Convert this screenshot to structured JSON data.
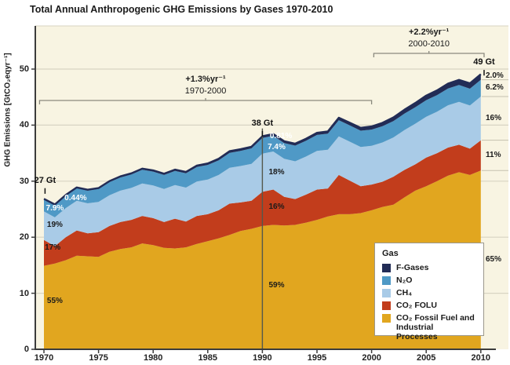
{
  "title": "Total Annual Anthropogenic GHG Emissions by Gases 1970-2010",
  "y_axis": {
    "title": "GHG Emissions [GtCO₂eqyr⁻¹]",
    "ticks": [
      0,
      10,
      20,
      30,
      40,
      50
    ]
  },
  "x_axis": {
    "ticks": [
      1970,
      1975,
      1980,
      1985,
      1990,
      1995,
      2000,
      2005,
      2010
    ]
  },
  "growth_annotations": [
    {
      "rate": "+1.3%yr⁻¹",
      "period": "1970-2000",
      "from_year": 1969.6,
      "to_year": 2000.0
    },
    {
      "rate": "+2.2%yr⁻¹",
      "period": "2000-2010",
      "from_year": 2000.2,
      "to_year": 2010.3
    }
  ],
  "total_labels": [
    {
      "text": "27 Gt",
      "year": 1970.1,
      "gt": 30.1
    },
    {
      "text": "38 Gt",
      "year": 1990.0,
      "gt": 40.3
    },
    {
      "text": "49 Gt",
      "year": 2010.3,
      "gt": 51.2
    }
  ],
  "share_labels": [
    {
      "text": "0.44%",
      "year": 1972.9,
      "gt": 26.9,
      "color": "#ffffff"
    },
    {
      "text": "7.9%",
      "year": 1971.0,
      "gt": 25.1,
      "color": "#ffffff"
    },
    {
      "text": "19%",
      "year": 1971.0,
      "gt": 22.1,
      "color": "#1a1a1a"
    },
    {
      "text": "17%",
      "year": 1970.8,
      "gt": 18.1,
      "color": "#1a1a1a"
    },
    {
      "text": "55%",
      "year": 1971.0,
      "gt": 8.6,
      "color": "#1a1a1a"
    },
    {
      "text": "0.81%",
      "year": 1991.7,
      "gt": 37.9,
      "color": "#ffffff"
    },
    {
      "text": "7.4%",
      "year": 1991.3,
      "gt": 36.0,
      "color": "#ffffff"
    },
    {
      "text": "18%",
      "year": 1991.3,
      "gt": 31.5,
      "color": "#1a1a1a"
    },
    {
      "text": "16%",
      "year": 1991.3,
      "gt": 25.4,
      "color": "#1a1a1a"
    },
    {
      "text": "59%",
      "year": 1991.3,
      "gt": 11.3,
      "color": "#1a1a1a"
    },
    {
      "text": "2.0%",
      "year": 2010.5,
      "gt": 48.7,
      "color": "#1a1a1a",
      "align": "left"
    },
    {
      "text": "6.2%",
      "year": 2010.5,
      "gt": 46.6,
      "color": "#1a1a1a",
      "align": "left"
    },
    {
      "text": "16%",
      "year": 2010.5,
      "gt": 41.2,
      "color": "#1a1a1a",
      "align": "left"
    },
    {
      "text": "11%",
      "year": 2010.5,
      "gt": 34.6,
      "color": "#1a1a1a",
      "align": "left"
    },
    {
      "text": "65%",
      "year": 2010.5,
      "gt": 16.0,
      "color": "#1a1a1a",
      "align": "left"
    }
  ],
  "legend": {
    "title": "Gas",
    "items": [
      {
        "label": "F-Gases",
        "color": "#222c56"
      },
      {
        "label": "N₂O",
        "color": "#4f99c6"
      },
      {
        "label": "CH₄",
        "color": "#a9cbe7"
      },
      {
        "label": "CO₂ FOLU",
        "color": "#c23d1c"
      },
      {
        "label": "CO₂ Fossil Fuel and Industrial Processes",
        "color": "#e1a61f"
      }
    ]
  },
  "colors": {
    "panel_bg": "#f8f4e2",
    "gridline": "#d8d4c3",
    "axis": "#3c3c3c",
    "marker_line_1990": "#54584c",
    "bracket": "#8a897e",
    "right_divider": "#c5c1b0",
    "fgases": "#222c56",
    "n2o": "#4f99c6",
    "ch4": "#a9cbe7",
    "co2_folu": "#c23d1c",
    "co2_fossil": "#e1a61f"
  },
  "chart_data": {
    "type": "area",
    "stacked": true,
    "title": "Total Annual Anthropogenic GHG Emissions by Gases 1970-2010",
    "ylabel": "GHG Emissions [GtCO₂eqyr⁻¹]",
    "unit": "GtCO₂eq/yr",
    "xlim": [
      1970,
      2010
    ],
    "ylim": [
      0,
      50
    ],
    "grid": true,
    "legend_position": "lower right",
    "x": [
      1970,
      1971,
      1972,
      1973,
      1974,
      1975,
      1976,
      1977,
      1978,
      1979,
      1980,
      1981,
      1982,
      1983,
      1984,
      1985,
      1986,
      1987,
      1988,
      1989,
      1990,
      1991,
      1992,
      1993,
      1994,
      1995,
      1996,
      1997,
      1998,
      1999,
      2000,
      2001,
      2002,
      2003,
      2004,
      2005,
      2006,
      2007,
      2008,
      2009,
      2010
    ],
    "series": [
      {
        "name": "CO₂ Fossil Fuel and Industrial Processes",
        "color": "#e1a61f",
        "values": [
          14.9,
          15.3,
          15.9,
          16.7,
          16.6,
          16.5,
          17.4,
          17.9,
          18.2,
          18.9,
          18.6,
          18.1,
          18.0,
          18.2,
          18.8,
          19.3,
          19.8,
          20.4,
          21.1,
          21.5,
          22.0,
          22.2,
          22.1,
          22.2,
          22.6,
          23.1,
          23.7,
          24.1,
          24.1,
          24.3,
          24.8,
          25.4,
          25.8,
          27.1,
          28.3,
          29.1,
          30.0,
          31.0,
          31.6,
          31.1,
          31.9
        ]
      },
      {
        "name": "CO₂ FOLU",
        "color": "#c23d1c",
        "values": [
          4.6,
          3.1,
          4.1,
          4.5,
          4.1,
          4.4,
          4.6,
          4.8,
          4.9,
          4.9,
          4.8,
          4.6,
          5.3,
          4.6,
          5.0,
          4.8,
          5.0,
          5.6,
          5.1,
          5.0,
          6.1,
          6.3,
          5.1,
          4.6,
          5.0,
          5.4,
          5.0,
          7.0,
          6.0,
          4.8,
          4.6,
          4.5,
          5.0,
          4.9,
          4.7,
          5.1,
          5.0,
          5.0,
          4.9,
          4.7,
          5.4
        ]
      },
      {
        "name": "CH₄",
        "color": "#a9cbe7",
        "values": [
          5.1,
          5.15,
          5.2,
          5.3,
          5.35,
          5.4,
          5.5,
          5.6,
          5.7,
          5.8,
          5.85,
          5.9,
          6.0,
          6.05,
          6.15,
          6.2,
          6.3,
          6.4,
          6.5,
          6.6,
          6.8,
          6.8,
          6.8,
          6.75,
          6.8,
          6.9,
          6.9,
          6.9,
          6.95,
          7.0,
          6.9,
          7.0,
          7.0,
          7.1,
          7.25,
          7.3,
          7.4,
          7.55,
          7.65,
          7.7,
          7.8
        ]
      },
      {
        "name": "N₂O",
        "color": "#4f99c6",
        "values": [
          2.13,
          2.16,
          2.2,
          2.23,
          2.26,
          2.3,
          2.33,
          2.36,
          2.4,
          2.43,
          2.46,
          2.5,
          2.52,
          2.55,
          2.58,
          2.6,
          2.63,
          2.66,
          2.7,
          2.75,
          2.8,
          2.8,
          2.8,
          2.8,
          2.82,
          2.85,
          2.87,
          2.88,
          2.9,
          2.9,
          2.9,
          2.9,
          2.92,
          2.94,
          2.95,
          2.96,
          2.97,
          2.98,
          3.0,
          3.0,
          3.0
        ]
      },
      {
        "name": "F-Gases",
        "color": "#222c56",
        "values": [
          0.12,
          0.13,
          0.14,
          0.15,
          0.16,
          0.17,
          0.18,
          0.19,
          0.2,
          0.21,
          0.22,
          0.23,
          0.24,
          0.25,
          0.26,
          0.27,
          0.28,
          0.29,
          0.3,
          0.3,
          0.31,
          0.32,
          0.33,
          0.34,
          0.36,
          0.38,
          0.41,
          0.44,
          0.48,
          0.52,
          0.56,
          0.6,
          0.65,
          0.7,
          0.75,
          0.8,
          0.84,
          0.88,
          0.92,
          0.95,
          0.98
        ]
      }
    ],
    "totals_called_out": [
      {
        "year": 1970,
        "total": 27
      },
      {
        "year": 1990,
        "total": 38
      },
      {
        "year": 2010,
        "total": 49
      }
    ],
    "shares_2010": {
      "F-Gases": "2.0%",
      "N₂O": "6.2%",
      "CH₄": "16%",
      "CO₂ FOLU": "11%",
      "CO₂ Fossil Fuel and Industrial Processes": "65%"
    }
  }
}
